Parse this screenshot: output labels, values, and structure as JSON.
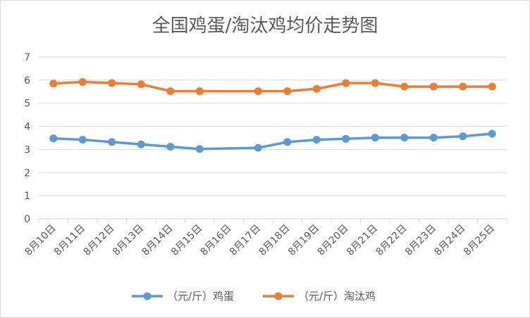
{
  "chart_data": {
    "type": "line",
    "title": "全国鸡蛋/淘汰鸡均价走势图",
    "xlabel": "",
    "ylabel": "",
    "categories": [
      "8月10日",
      "8月11日",
      "8月12日",
      "8月13日",
      "8月14日",
      "8月15日",
      "8月16日",
      "8月17日",
      "8月18日",
      "8月19日",
      "8月20日",
      "8月21日",
      "8月22日",
      "8月23日",
      "8月24日",
      "8月25日"
    ],
    "yticks": [
      "0",
      "1",
      "2",
      "3",
      "4",
      "5",
      "6",
      "7"
    ],
    "ylim": [
      0,
      7
    ],
    "grid": true,
    "legend_position": "bottom",
    "series": [
      {
        "name": "（元/斤）鸡蛋",
        "color": "#5B9BD5",
        "values": [
          3.48,
          3.42,
          3.32,
          3.22,
          3.12,
          3.02,
          null,
          3.07,
          3.32,
          3.42,
          3.46,
          3.51,
          3.51,
          3.51,
          3.57,
          3.68
        ]
      },
      {
        "name": "（元/斤）淘汰鸡",
        "color": "#ED7D31",
        "values": [
          5.85,
          5.92,
          5.87,
          5.82,
          5.52,
          5.52,
          null,
          5.52,
          5.52,
          5.62,
          5.87,
          5.87,
          5.72,
          5.72,
          5.72,
          5.72
        ]
      }
    ]
  }
}
